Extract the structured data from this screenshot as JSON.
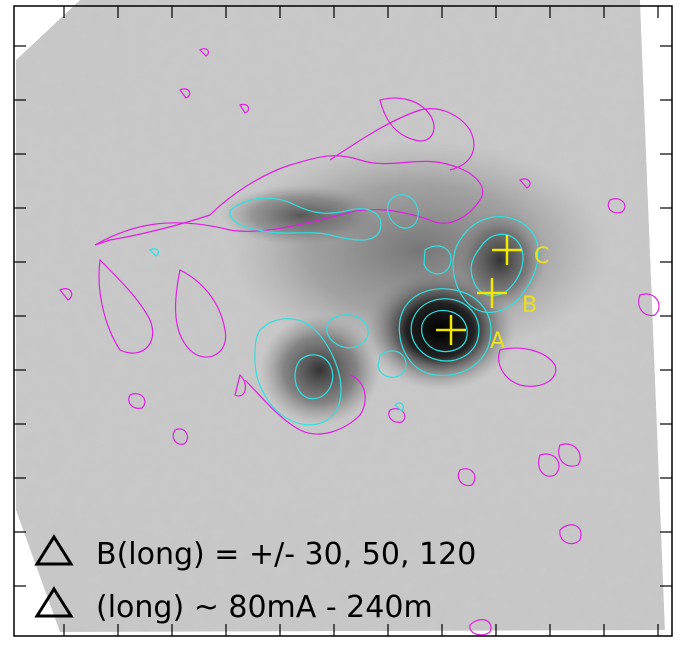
{
  "figure": {
    "legend": {
      "line1": "B(long) = +/- 30, 50, 120",
      "line2": "(long) ~ 80mA - 240m"
    },
    "markers": [
      {
        "id": "A",
        "label": "A"
      },
      {
        "id": "B",
        "label": "B"
      },
      {
        "id": "C",
        "label": "C"
      }
    ],
    "colors": {
      "positive_contour": "#30e0e0",
      "negative_contour": "#e020e0",
      "marker": "#f0e800",
      "frame": "#000000"
    }
  }
}
